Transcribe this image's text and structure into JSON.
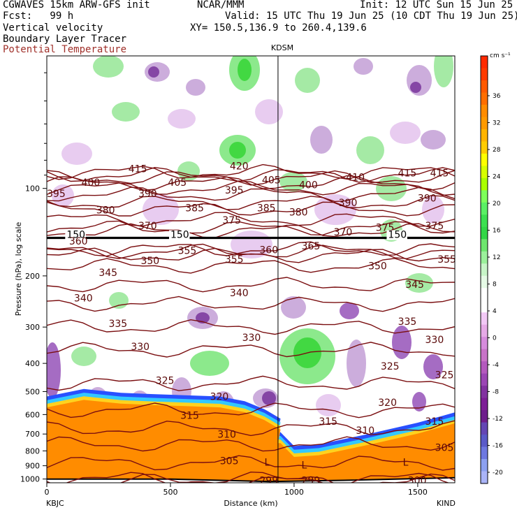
{
  "header": {
    "line1_left": "CGWAVES 15km ARW-GFS init",
    "line1_center": "NCAR/MMM",
    "line1_right": "Init: 12 UTC Sun 15 Jun 25",
    "line2_left": "Fcst:   99 h",
    "line2_right": "Valid: 15 UTC Thu 19 Jun 25 (10 CDT Thu 19 Jun 25)",
    "line3_left": "Vertical velocity",
    "line3_right": "XY= 150.5,136.9 to 260.4,139.6",
    "line4_left": "Boundary Layer Tracer",
    "line5_left": "Potential Temperature",
    "line5_color": "#a0302a"
  },
  "chart_data": {
    "type": "cross-section",
    "station_top": "KDSM",
    "x": {
      "label": "Distance (km)",
      "range": [
        0,
        1650
      ],
      "ticks": [
        0,
        500,
        1000,
        1500
      ],
      "tick_labels": [
        "0",
        "500",
        "1000",
        "1500"
      ],
      "end_labels": {
        "left": "KBJC",
        "right": "KIND"
      },
      "marker_km": 935
    },
    "y": {
      "label": "Pressure (hPa), log scale",
      "scale": "log",
      "range": [
        1030,
        35
      ],
      "ticks": [
        100,
        200,
        300,
        400,
        500,
        600,
        700,
        800,
        900,
        1000
      ],
      "tick_labels": [
        "100",
        "200",
        "300",
        "400",
        "500",
        "600",
        "700",
        "800",
        "900",
        "1000"
      ]
    },
    "colorbar": {
      "unit": "cm s⁻¹",
      "labels": [
        "36",
        "32",
        "28",
        "24",
        "20",
        "16",
        "12",
        "8",
        "4",
        "0",
        "-4",
        "-8",
        "-12",
        "-16",
        "-20"
      ],
      "colors": [
        "#ff2a00",
        "#ff3a00",
        "#ff5a00",
        "#ff6e00",
        "#ff8c00",
        "#ff9a00",
        "#ffb400",
        "#ffcc00",
        "#ffff00",
        "#d7ff00",
        "#aaff00",
        "#7dff5a",
        "#5af064",
        "#3ce050",
        "#32d746",
        "#6ee66e",
        "#9bf09b",
        "#c8f5c8",
        "#e6fae6",
        "#ffffff",
        "#ffffff",
        "#f2c8f5",
        "#e6aae6",
        "#d68cdc",
        "#c873c8",
        "#b45abe",
        "#9b46b4",
        "#8232a0",
        "#7d1e96",
        "#6e1e8c",
        "#6446b4",
        "#5a5ac8",
        "#6e78e0",
        "#8ca0f0",
        "#aab4f8"
      ]
    },
    "theta_contours": [
      {
        "value": 299,
        "p": 1020
      },
      {
        "value": 300,
        "p": 1000
      },
      {
        "value": 305,
        "p": 880
      },
      {
        "value": 310,
        "p": 760
      },
      {
        "value": 315,
        "p": 670
      },
      {
        "value": 320,
        "p": 580
      },
      {
        "value": 325,
        "p": 470
      },
      {
        "value": 330,
        "p": 360
      },
      {
        "value": 335,
        "p": 300
      },
      {
        "value": 340,
        "p": 250
      },
      {
        "value": 345,
        "p": 215
      },
      {
        "value": 350,
        "p": 185
      },
      {
        "value": 355,
        "p": 170
      },
      {
        "value": 360,
        "p": 165
      },
      {
        "value": 365,
        "p": 162
      },
      {
        "value": 370,
        "p": 140
      },
      {
        "value": 375,
        "p": 137
      },
      {
        "value": 380,
        "p": 128
      },
      {
        "value": 385,
        "p": 118
      },
      {
        "value": 390,
        "p": 112
      },
      {
        "value": 395,
        "p": 105
      },
      {
        "value": 400,
        "p": 100
      },
      {
        "value": 405,
        "p": 96
      },
      {
        "value": 410,
        "p": 92
      },
      {
        "value": 415,
        "p": 90
      },
      {
        "value": 420,
        "p": 88
      }
    ],
    "theta_labels": [
      {
        "text": "415",
        "x": 330,
        "p": 88
      },
      {
        "text": "420",
        "x": 740,
        "p": 86
      },
      {
        "text": "400",
        "x": 140,
        "p": 98
      },
      {
        "text": "405",
        "x": 490,
        "p": 98
      },
      {
        "text": "405",
        "x": 870,
        "p": 96
      },
      {
        "text": "410",
        "x": 1210,
        "p": 94
      },
      {
        "text": "415",
        "x": 1420,
        "p": 91
      },
      {
        "text": "415",
        "x": 1550,
        "p": 91
      },
      {
        "text": "395",
        "x": 0,
        "p": 107
      },
      {
        "text": "390",
        "x": 370,
        "p": 107
      },
      {
        "text": "395",
        "x": 720,
        "p": 104
      },
      {
        "text": "400",
        "x": 1020,
        "p": 100
      },
      {
        "text": "390",
        "x": 1180,
        "p": 115
      },
      {
        "text": "390",
        "x": 1500,
        "p": 111
      },
      {
        "text": "380",
        "x": 200,
        "p": 122
      },
      {
        "text": "385",
        "x": 560,
        "p": 120
      },
      {
        "text": "385",
        "x": 850,
        "p": 120
      },
      {
        "text": "380",
        "x": 980,
        "p": 124
      },
      {
        "text": "370",
        "x": 370,
        "p": 138
      },
      {
        "text": "375",
        "x": 710,
        "p": 132
      },
      {
        "text": "370",
        "x": 1160,
        "p": 145
      },
      {
        "text": "375",
        "x": 1330,
        "p": 140
      },
      {
        "text": "375",
        "x": 1530,
        "p": 138
      },
      {
        "text": "150",
        "x": 80,
        "p": 148
      },
      {
        "text": "150",
        "x": 500,
        "p": 148
      },
      {
        "text": "150",
        "x": 1380,
        "p": 148
      },
      {
        "text": "360",
        "x": 90,
        "p": 156
      },
      {
        "text": "355",
        "x": 530,
        "p": 168
      },
      {
        "text": "360",
        "x": 860,
        "p": 167
      },
      {
        "text": "365",
        "x": 1030,
        "p": 162
      },
      {
        "text": "350",
        "x": 380,
        "p": 182
      },
      {
        "text": "355",
        "x": 720,
        "p": 180
      },
      {
        "text": "350",
        "x": 1300,
        "p": 190
      },
      {
        "text": "355",
        "x": 1580,
        "p": 180
      },
      {
        "text": "345",
        "x": 210,
        "p": 200
      },
      {
        "text": "345",
        "x": 1450,
        "p": 220
      },
      {
        "text": "340",
        "x": 110,
        "p": 245
      },
      {
        "text": "340",
        "x": 740,
        "p": 235
      },
      {
        "text": "335",
        "x": 250,
        "p": 300
      },
      {
        "text": "335",
        "x": 1420,
        "p": 295
      },
      {
        "text": "330",
        "x": 340,
        "p": 360
      },
      {
        "text": "330",
        "x": 790,
        "p": 335
      },
      {
        "text": "330",
        "x": 1530,
        "p": 340
      },
      {
        "text": "325",
        "x": 440,
        "p": 470
      },
      {
        "text": "325",
        "x": 1350,
        "p": 420
      },
      {
        "text": "325",
        "x": 1570,
        "p": 450
      },
      {
        "text": "320",
        "x": 660,
        "p": 535
      },
      {
        "text": "320",
        "x": 1340,
        "p": 560
      },
      {
        "text": "315",
        "x": 540,
        "p": 620
      },
      {
        "text": "315",
        "x": 1100,
        "p": 650
      },
      {
        "text": "315",
        "x": 1530,
        "p": 650
      },
      {
        "text": "310",
        "x": 690,
        "p": 720
      },
      {
        "text": "310",
        "x": 1250,
        "p": 700
      },
      {
        "text": "305",
        "x": 700,
        "p": 890
      },
      {
        "text": "305",
        "x": 1570,
        "p": 800
      },
      {
        "text": "L",
        "x": 880,
        "p": 900
      },
      {
        "text": "L",
        "x": 1030,
        "p": 920
      },
      {
        "text": "L",
        "x": 1440,
        "p": 900
      },
      {
        "text": "299",
        "x": 860,
        "p": 1040
      },
      {
        "text": "299",
        "x": 1030,
        "p": 1040
      },
      {
        "text": "300",
        "x": 1460,
        "p": 1040
      }
    ]
  }
}
